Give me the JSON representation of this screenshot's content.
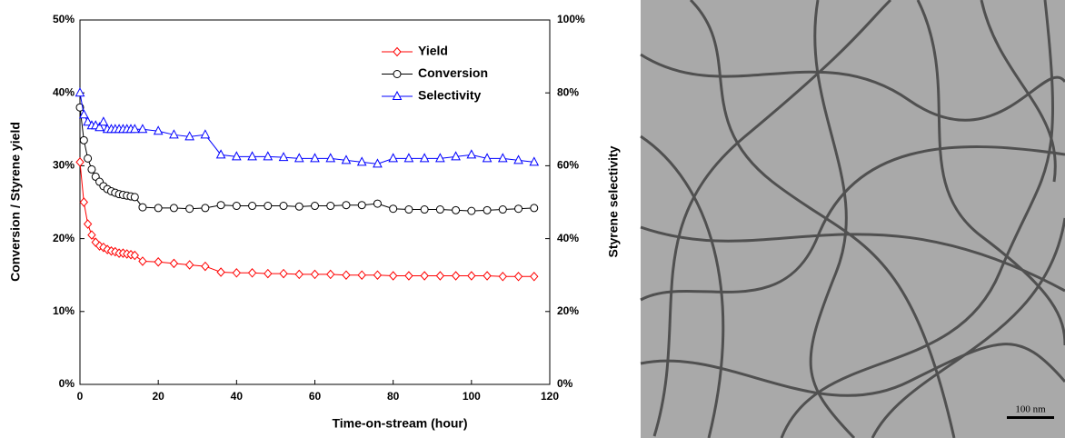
{
  "chart_data": {
    "type": "line",
    "xlabel": "Time-on-stream (hour)",
    "ylabel": "Conversion / Styrene yield",
    "y2label": "Styrene selectivity",
    "x": [
      0,
      1,
      2,
      3,
      4,
      5,
      6,
      7,
      8,
      9,
      10,
      11,
      12,
      13,
      14,
      16,
      20,
      24,
      28,
      32,
      36,
      40,
      44,
      48,
      52,
      56,
      60,
      64,
      68,
      72,
      76,
      80,
      84,
      88,
      92,
      96,
      100,
      104,
      108,
      112,
      116
    ],
    "series": [
      {
        "name": "Yield",
        "color": "#ff0000",
        "marker": "diamond",
        "values": [
          30.5,
          25,
          22,
          20.5,
          19.5,
          19,
          18.8,
          18.5,
          18.3,
          18.2,
          18,
          18,
          17.9,
          17.8,
          17.7,
          16.9,
          16.8,
          16.6,
          16.4,
          16.2,
          15.4,
          15.3,
          15.3,
          15.2,
          15.2,
          15.1,
          15.1,
          15.1,
          15.0,
          15.0,
          15.0,
          14.9,
          14.9,
          14.9,
          14.9,
          14.9,
          14.9,
          14.9,
          14.8,
          14.8,
          14.8
        ]
      },
      {
        "name": "Conversion",
        "color": "#000000",
        "marker": "circle",
        "values": [
          38,
          33.5,
          31,
          29.5,
          28.5,
          27.8,
          27.2,
          26.8,
          26.5,
          26.3,
          26.1,
          26,
          25.9,
          25.8,
          25.7,
          24.3,
          24.2,
          24.2,
          24.1,
          24.2,
          24.6,
          24.5,
          24.5,
          24.5,
          24.5,
          24.4,
          24.5,
          24.5,
          24.6,
          24.6,
          24.8,
          24.1,
          24.0,
          24.0,
          24.0,
          23.9,
          23.8,
          23.9,
          24.0,
          24.1,
          24.2
        ]
      },
      {
        "name": "Selectivity",
        "color": "#0000ff",
        "marker": "triangle",
        "axis": "y2",
        "values": [
          80,
          74,
          72,
          71,
          71,
          70.5,
          72,
          70,
          70,
          70,
          70,
          70,
          70,
          70,
          70,
          70,
          69.5,
          68.5,
          68,
          68.5,
          63,
          62.5,
          62.5,
          62.5,
          62.3,
          62,
          62,
          62,
          61.5,
          61,
          60.5,
          62,
          62,
          62,
          62,
          62.5,
          63,
          62,
          62,
          61.5,
          61
        ]
      }
    ],
    "xlim": [
      0,
      120
    ],
    "xticks": [
      0,
      20,
      40,
      60,
      80,
      100,
      120
    ],
    "ylim": [
      0,
      50
    ],
    "yticks": [
      {
        "value": 0,
        "label": "0%"
      },
      {
        "value": 10,
        "label": "10%"
      },
      {
        "value": 20,
        "label": "20%"
      },
      {
        "value": 30,
        "label": "30%"
      },
      {
        "value": 40,
        "label": "40%"
      },
      {
        "value": 50,
        "label": "50%"
      }
    ],
    "y2lim": [
      0,
      100
    ],
    "y2ticks": [
      {
        "value": 0,
        "label": "0%"
      },
      {
        "value": 20,
        "label": "20%"
      },
      {
        "value": 40,
        "label": "40%"
      },
      {
        "value": 60,
        "label": "60%"
      },
      {
        "value": 80,
        "label": "80%"
      },
      {
        "value": 100,
        "label": "100%"
      }
    ],
    "grid": false,
    "legend": "upper right"
  },
  "image": {
    "scale_bar": "100 nm"
  }
}
